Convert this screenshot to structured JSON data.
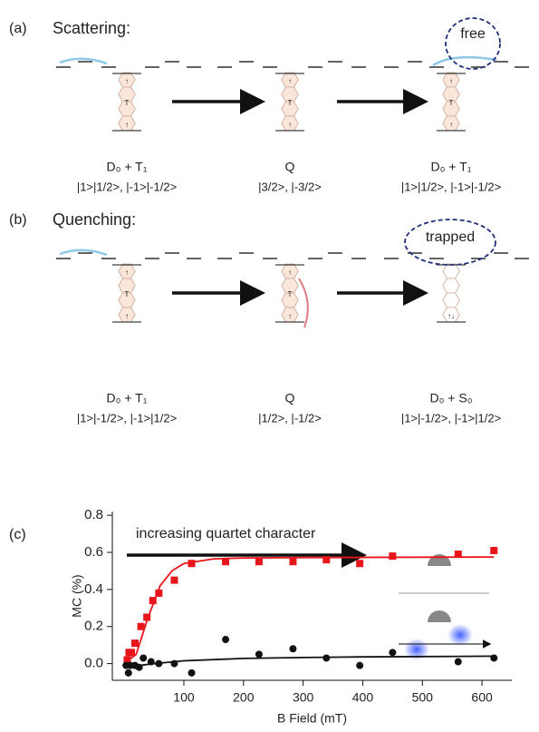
{
  "panel_a": {
    "label": "(a)",
    "title": "Scattering:",
    "annotation": "free",
    "molecules": [
      {
        "top": "↑",
        "mid": "T",
        "bottom": "↑"
      },
      {
        "top": "↑",
        "mid": "T",
        "bottom": "↑"
      },
      {
        "top": "↑",
        "mid": "T",
        "bottom": "↑"
      }
    ],
    "states": [
      {
        "term": "D₀ + T₁",
        "ket": "|1>|1/2>, |-1>|-1/2>"
      },
      {
        "term": "Q",
        "ket": "|3/2>, |-3/2>"
      },
      {
        "term": "D₀ + T₁",
        "ket": "|1>|1/2>, |-1>|-1/2>"
      }
    ]
  },
  "panel_b": {
    "label": "(b)",
    "title": "Quenching:",
    "annotation": "trapped",
    "molecules": [
      {
        "top": "↑",
        "mid": "T",
        "bottom": "↑"
      },
      {
        "top": "↑",
        "mid": "T",
        "bottom": "↑"
      },
      {
        "bottom": "↑↓"
      }
    ],
    "states": [
      {
        "term": "D₀ + T₁",
        "ket": "|1>|-1/2>, |-1>|1/2>"
      },
      {
        "term": "Q",
        "ket": "|1/2>, |-1/2>"
      },
      {
        "term": "D₀ + S₀",
        "ket": "|1>|-1/2>, |-1>|1/2>"
      }
    ]
  },
  "chart_data": {
    "type": "scatter",
    "panel_label": "(c)",
    "annotation": "increasing quartet character",
    "x_label": "B Field (mT)",
    "y_label": "MC (%)",
    "xlim": [
      -20,
      650
    ],
    "ylim": [
      -0.09,
      0.82
    ],
    "xticks": [
      100,
      200,
      300,
      400,
      500,
      600
    ],
    "yticks": [
      {
        "value": 0,
        "label": "0.0"
      },
      {
        "value": 0.2,
        "label": "0.2"
      },
      {
        "value": 0.4,
        "label": "0.4"
      },
      {
        "value": 0.6,
        "label": "0.6"
      },
      {
        "value": 0.8,
        "label": "0.8"
      }
    ],
    "series": [
      {
        "color": "#e8151b",
        "marker": "square",
        "x": [
          5,
          8,
          12,
          18,
          28,
          38,
          48,
          58,
          84,
          113,
          170,
          226,
          283,
          339,
          395,
          450,
          560,
          620
        ],
        "values": [
          0.02,
          0.06,
          0.06,
          0.11,
          0.2,
          0.25,
          0.34,
          0.38,
          0.45,
          0.54,
          0.55,
          0.55,
          0.55,
          0.56,
          0.54,
          0.58,
          0.59,
          0.61
        ]
      },
      {
        "color": "#111111",
        "marker": "circle",
        "x": [
          3,
          7,
          10,
          18,
          25,
          32,
          45,
          58,
          84,
          113,
          170,
          226,
          283,
          339,
          395,
          450,
          560,
          620
        ],
        "values": [
          -0.01,
          -0.05,
          -0.01,
          -0.01,
          -0.02,
          0.03,
          0.01,
          0,
          0,
          -0.05,
          0.13,
          0.05,
          0.08,
          0.03,
          -0.01,
          0.06,
          0.01,
          0.03
        ]
      }
    ],
    "fits": [
      {
        "color": "#e8151b",
        "x": [
          0,
          20,
          40,
          60,
          80,
          100,
          150,
          200,
          300,
          620
        ],
        "values": [
          0,
          0.05,
          0.25,
          0.42,
          0.5,
          0.54,
          0.565,
          0.57,
          0.572,
          0.575
        ]
      },
      {
        "color": "#111111",
        "x": [
          0,
          50,
          100,
          200,
          300,
          400,
          620
        ],
        "values": [
          -0.02,
          0,
          0.015,
          0.028,
          0.033,
          0.036,
          0.04
        ]
      }
    ]
  }
}
